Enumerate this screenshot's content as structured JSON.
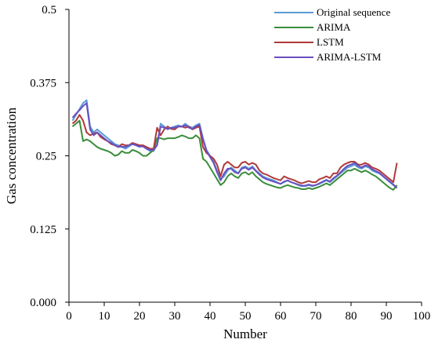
{
  "chart_data": {
    "type": "line",
    "xlabel": "Number",
    "ylabel": "Gas concentration",
    "xlim": [
      0,
      100
    ],
    "ylim": [
      0,
      0.5
    ],
    "x_ticks": [
      0,
      10,
      20,
      30,
      40,
      50,
      60,
      70,
      80,
      90,
      100
    ],
    "x_tick_labels": [
      "0",
      "10",
      "20",
      "30",
      "40",
      "50",
      "60",
      "70",
      "80",
      "90",
      "100"
    ],
    "y_ticks": [
      0,
      0.125,
      0.25,
      0.375,
      0.5
    ],
    "y_tick_labels": [
      "0.000",
      "0.125",
      "0.25",
      "0.375",
      "0.5"
    ],
    "grid": false,
    "legend_position": "top-right",
    "x": [
      1,
      2,
      3,
      4,
      5,
      6,
      7,
      8,
      9,
      10,
      11,
      12,
      13,
      14,
      15,
      16,
      17,
      18,
      19,
      20,
      21,
      22,
      23,
      24,
      25,
      26,
      27,
      28,
      29,
      30,
      31,
      32,
      33,
      34,
      35,
      36,
      37,
      38,
      39,
      40,
      41,
      42,
      43,
      44,
      45,
      46,
      47,
      48,
      49,
      50,
      51,
      52,
      53,
      54,
      55,
      56,
      57,
      58,
      59,
      60,
      61,
      62,
      63,
      64,
      65,
      66,
      67,
      68,
      69,
      70,
      71,
      72,
      73,
      74,
      75,
      76,
      77,
      78,
      79,
      80,
      81,
      82,
      83,
      84,
      85,
      86,
      87,
      88,
      89,
      90,
      91,
      92,
      93
    ],
    "series": [
      {
        "name": "Original sequence",
        "color": "#5b9bd5",
        "values": [
          0.31,
          0.32,
          0.33,
          0.34,
          0.345,
          0.3,
          0.29,
          0.295,
          0.29,
          0.285,
          0.28,
          0.275,
          0.27,
          0.268,
          0.265,
          0.262,
          0.266,
          0.27,
          0.268,
          0.265,
          0.268,
          0.262,
          0.258,
          0.258,
          0.27,
          0.305,
          0.3,
          0.295,
          0.298,
          0.3,
          0.302,
          0.3,
          0.305,
          0.3,
          0.298,
          0.302,
          0.305,
          0.28,
          0.26,
          0.25,
          0.24,
          0.225,
          0.21,
          0.215,
          0.225,
          0.23,
          0.225,
          0.22,
          0.23,
          0.232,
          0.228,
          0.232,
          0.225,
          0.22,
          0.215,
          0.212,
          0.21,
          0.208,
          0.205,
          0.202,
          0.205,
          0.208,
          0.205,
          0.203,
          0.2,
          0.198,
          0.198,
          0.2,
          0.198,
          0.2,
          0.202,
          0.205,
          0.208,
          0.205,
          0.21,
          0.215,
          0.22,
          0.225,
          0.23,
          0.232,
          0.235,
          0.23,
          0.228,
          0.232,
          0.23,
          0.225,
          0.222,
          0.22,
          0.215,
          0.21,
          0.205,
          0.2,
          0.195
        ]
      },
      {
        "name": "ARIMA",
        "color": "#3a8e3a",
        "values": [
          0.3,
          0.305,
          0.31,
          0.275,
          0.278,
          0.275,
          0.27,
          0.265,
          0.262,
          0.26,
          0.258,
          0.255,
          0.25,
          0.252,
          0.258,
          0.255,
          0.255,
          0.26,
          0.258,
          0.255,
          0.25,
          0.25,
          0.255,
          0.26,
          0.28,
          0.28,
          0.278,
          0.28,
          0.28,
          0.28,
          0.282,
          0.285,
          0.283,
          0.28,
          0.28,
          0.285,
          0.28,
          0.245,
          0.24,
          0.23,
          0.22,
          0.21,
          0.2,
          0.205,
          0.215,
          0.22,
          0.215,
          0.212,
          0.22,
          0.222,
          0.218,
          0.222,
          0.215,
          0.21,
          0.205,
          0.202,
          0.2,
          0.198,
          0.196,
          0.195,
          0.198,
          0.2,
          0.198,
          0.196,
          0.195,
          0.193,
          0.193,
          0.195,
          0.193,
          0.195,
          0.197,
          0.2,
          0.203,
          0.2,
          0.205,
          0.21,
          0.215,
          0.22,
          0.225,
          0.225,
          0.228,
          0.225,
          0.222,
          0.225,
          0.222,
          0.218,
          0.215,
          0.21,
          0.205,
          0.2,
          0.195,
          0.192,
          0.2
        ]
      },
      {
        "name": "LSTM",
        "color": "#b03a3a",
        "values": [
          0.305,
          0.31,
          0.32,
          0.31,
          0.29,
          0.285,
          0.288,
          0.29,
          0.282,
          0.278,
          0.275,
          0.27,
          0.268,
          0.265,
          0.27,
          0.268,
          0.268,
          0.272,
          0.27,
          0.268,
          0.268,
          0.265,
          0.262,
          0.262,
          0.298,
          0.285,
          0.295,
          0.3,
          0.296,
          0.295,
          0.3,
          0.3,
          0.298,
          0.3,
          0.295,
          0.298,
          0.3,
          0.265,
          0.255,
          0.25,
          0.245,
          0.235,
          0.215,
          0.235,
          0.24,
          0.235,
          0.23,
          0.23,
          0.238,
          0.24,
          0.235,
          0.238,
          0.235,
          0.225,
          0.22,
          0.218,
          0.215,
          0.212,
          0.21,
          0.208,
          0.215,
          0.212,
          0.21,
          0.208,
          0.205,
          0.203,
          0.205,
          0.207,
          0.205,
          0.205,
          0.21,
          0.212,
          0.215,
          0.212,
          0.22,
          0.22,
          0.23,
          0.235,
          0.238,
          0.24,
          0.24,
          0.235,
          0.235,
          0.238,
          0.235,
          0.23,
          0.228,
          0.225,
          0.22,
          0.215,
          0.21,
          0.205,
          0.238
        ]
      },
      {
        "name": "ARIMA-LSTM",
        "color": "#6a4fc0",
        "values": [
          0.315,
          0.322,
          0.328,
          0.335,
          0.34,
          0.295,
          0.285,
          0.29,
          0.285,
          0.28,
          0.275,
          0.272,
          0.268,
          0.265,
          0.266,
          0.265,
          0.268,
          0.27,
          0.268,
          0.266,
          0.266,
          0.262,
          0.26,
          0.26,
          0.268,
          0.3,
          0.298,
          0.296,
          0.298,
          0.298,
          0.3,
          0.3,
          0.302,
          0.298,
          0.296,
          0.3,
          0.303,
          0.278,
          0.258,
          0.248,
          0.238,
          0.222,
          0.208,
          0.22,
          0.228,
          0.228,
          0.222,
          0.22,
          0.228,
          0.23,
          0.226,
          0.23,
          0.224,
          0.218,
          0.213,
          0.21,
          0.208,
          0.206,
          0.204,
          0.202,
          0.206,
          0.208,
          0.205,
          0.203,
          0.201,
          0.199,
          0.199,
          0.201,
          0.199,
          0.2,
          0.203,
          0.206,
          0.209,
          0.206,
          0.212,
          0.216,
          0.222,
          0.228,
          0.233,
          0.235,
          0.238,
          0.233,
          0.23,
          0.234,
          0.232,
          0.227,
          0.224,
          0.221,
          0.216,
          0.211,
          0.206,
          0.201,
          0.195
        ]
      }
    ]
  }
}
